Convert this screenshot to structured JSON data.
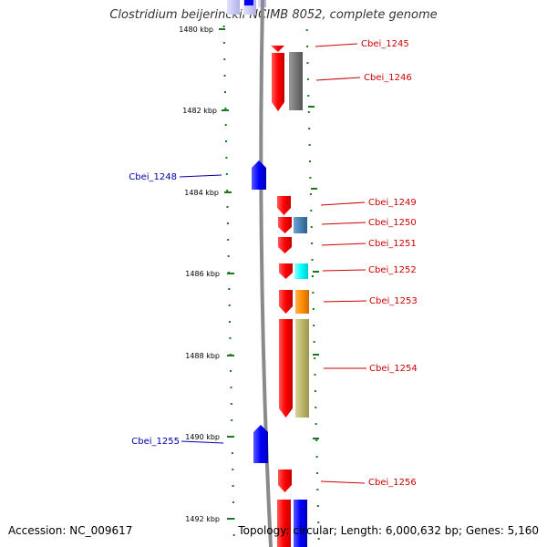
{
  "title": "Clostridium beijerinckii NCIMB 8052, complete genome",
  "accession": "Accession: NC_009617",
  "topology": "Topology: circular; Length: 6,000,632 bp; Genes: 5,160",
  "ticks": [
    "1480 kbp",
    "1482 kbp",
    "1484 kbp",
    "1486 kbp",
    "1488 kbp",
    "1490 kbp",
    "1492 kbp"
  ],
  "genes": [
    {
      "label": "Cbei_1245",
      "strand": "forward",
      "color": "#cc0000"
    },
    {
      "label": "Cbei_1246",
      "strand": "forward",
      "color": "#cc0000"
    },
    {
      "label": "Cbei_1248",
      "strand": "reverse",
      "color": "#0000aa"
    },
    {
      "label": "Cbei_1249",
      "strand": "forward",
      "color": "#cc0000"
    },
    {
      "label": "Cbei_1250",
      "strand": "forward",
      "color": "#cc0000"
    },
    {
      "label": "Cbei_1251",
      "strand": "forward",
      "color": "#cc0000"
    },
    {
      "label": "Cbei_1252",
      "strand": "forward",
      "color": "#cc0000"
    },
    {
      "label": "Cbei_1253",
      "strand": "forward",
      "color": "#cc0000"
    },
    {
      "label": "Cbei_1254",
      "strand": "forward",
      "color": "#cc0000"
    },
    {
      "label": "Cbei_1255",
      "strand": "reverse",
      "color": "#0000aa"
    },
    {
      "label": "Cbei_1256",
      "strand": "forward",
      "color": "#cc0000"
    }
  ],
  "colors": {
    "forward_cds": "#ff0000",
    "reverse_cds": "#0000ff",
    "backbone": "#808080",
    "tick": "#1a7a1a",
    "cog_gray": "#777777",
    "cog_steelblue": "#4682b4",
    "cog_cyan": "#00ffff",
    "cog_orange": "#ff8c00",
    "cog_khaki": "#bdb76b"
  }
}
